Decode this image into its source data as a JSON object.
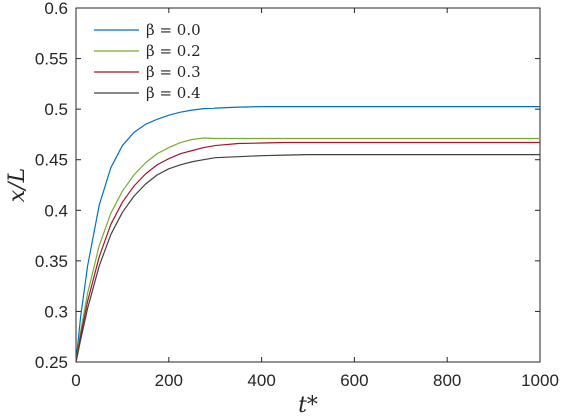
{
  "chart_data": {
    "type": "line",
    "xlabel": "t*",
    "ylabel": "x/L",
    "xlim": [
      0,
      1000
    ],
    "ylim": [
      0.25,
      0.6
    ],
    "xticks": [
      0,
      200,
      400,
      600,
      800,
      1000
    ],
    "yticks": [
      0.25,
      0.3,
      0.35,
      0.4,
      0.45,
      0.5,
      0.55,
      0.6
    ],
    "ytick_labels": [
      "0.25",
      "0.3",
      "0.35",
      "0.4",
      "0.45",
      "0.5",
      "0.55",
      "0.6"
    ],
    "grid": false,
    "legend_position": "top-left",
    "x": [
      0,
      10,
      25,
      50,
      75,
      100,
      125,
      150,
      175,
      200,
      225,
      250,
      275,
      300,
      350,
      400,
      450,
      500,
      600,
      700,
      800,
      900,
      1000
    ],
    "series": [
      {
        "name": "β = 0.0",
        "color": "#0072BD",
        "values": [
          0.25,
          0.295,
          0.345,
          0.405,
          0.442,
          0.464,
          0.477,
          0.485,
          0.49,
          0.494,
          0.497,
          0.499,
          0.5005,
          0.501,
          0.502,
          0.5025,
          0.5025,
          0.5025,
          0.5025,
          0.5025,
          0.5025,
          0.5025,
          0.5025
        ]
      },
      {
        "name": "β = 0.2",
        "color": "#77AC30",
        "values": [
          0.25,
          0.28,
          0.318,
          0.365,
          0.397,
          0.419,
          0.435,
          0.447,
          0.456,
          0.462,
          0.467,
          0.47,
          0.4715,
          0.471,
          0.471,
          0.471,
          0.471,
          0.471,
          0.471,
          0.471,
          0.471,
          0.471,
          0.471
        ]
      },
      {
        "name": "β = 0.3",
        "color": "#A2142F",
        "values": [
          0.25,
          0.276,
          0.31,
          0.354,
          0.386,
          0.408,
          0.424,
          0.436,
          0.445,
          0.451,
          0.456,
          0.459,
          0.462,
          0.464,
          0.466,
          0.4665,
          0.467,
          0.467,
          0.467,
          0.467,
          0.467,
          0.467,
          0.467
        ]
      },
      {
        "name": "β = 0.4",
        "color": "#404040",
        "values": [
          0.25,
          0.272,
          0.303,
          0.345,
          0.376,
          0.398,
          0.414,
          0.426,
          0.435,
          0.441,
          0.445,
          0.448,
          0.45,
          0.452,
          0.453,
          0.454,
          0.4545,
          0.455,
          0.455,
          0.455,
          0.455,
          0.455,
          0.455
        ]
      }
    ]
  }
}
